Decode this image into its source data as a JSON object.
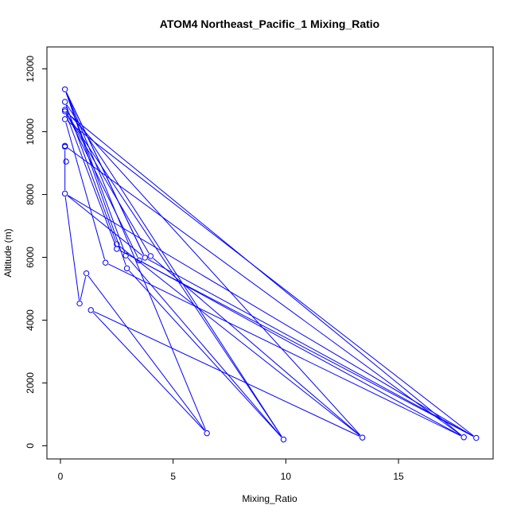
{
  "chart_data": {
    "type": "scatter",
    "title": "ATOM4 Northeast_Pacific_1 Mixing_Ratio",
    "xlabel": "Mixing_Ratio",
    "ylabel": "Altitude (m)",
    "xlim": [
      -0.6,
      19.2
    ],
    "ylim": [
      -420,
      12700
    ],
    "xticks": [
      0,
      5,
      10,
      15
    ],
    "yticks": [
      0,
      2000,
      4000,
      6000,
      8000,
      10000,
      12000
    ],
    "grid": false,
    "legend": "none",
    "color": "#0000ff",
    "series": [
      {
        "points": [
          [
            0.2,
            11350
          ],
          [
            0.2,
            10950
          ],
          [
            0.2,
            10700
          ],
          [
            0.2,
            10650
          ],
          [
            0.2,
            10400
          ],
          [
            0.2,
            9550
          ],
          [
            0.2,
            9520
          ],
          [
            0.25,
            9050
          ],
          [
            0.2,
            8030
          ],
          [
            0.85,
            4530
          ],
          [
            1.15,
            5490
          ],
          [
            1.35,
            4320
          ],
          [
            2.0,
            5830
          ],
          [
            2.5,
            6420
          ],
          [
            2.5,
            6270
          ],
          [
            2.9,
            6060
          ],
          [
            2.95,
            5650
          ],
          [
            3.5,
            5900
          ],
          [
            3.75,
            5990
          ],
          [
            4.0,
            6040
          ],
          [
            6.5,
            400
          ],
          [
            9.9,
            200
          ],
          [
            13.4,
            260
          ],
          [
            17.9,
            270
          ],
          [
            18.45,
            250
          ]
        ],
        "path": [
          [
            0.2,
            11350
          ],
          [
            2.9,
            6060
          ],
          [
            9.9,
            200
          ],
          [
            0.2,
            10950
          ],
          [
            2.5,
            6420
          ],
          [
            13.4,
            260
          ],
          [
            0.2,
            10700
          ],
          [
            3.5,
            5900
          ],
          [
            17.9,
            270
          ],
          [
            0.2,
            10650
          ],
          [
            2.5,
            6270
          ],
          [
            18.45,
            250
          ],
          [
            0.2,
            10400
          ],
          [
            2.0,
            5830
          ],
          [
            17.9,
            270
          ],
          [
            0.2,
            9550
          ],
          [
            0.2,
            9520
          ],
          [
            0.2,
            8030
          ],
          [
            3.75,
            5990
          ],
          [
            18.45,
            250
          ],
          [
            0.2,
            8030
          ],
          [
            0.85,
            4530
          ],
          [
            1.15,
            5490
          ],
          [
            6.5,
            400
          ],
          [
            0.2,
            11350
          ],
          [
            3.75,
            5990
          ],
          [
            0.2,
            11350
          ],
          [
            2.95,
            5650
          ],
          [
            9.9,
            200
          ],
          [
            0.2,
            10650
          ],
          [
            4.0,
            6040
          ],
          [
            13.4,
            260
          ],
          [
            1.35,
            4320
          ],
          [
            6.5,
            400
          ]
        ]
      }
    ]
  }
}
